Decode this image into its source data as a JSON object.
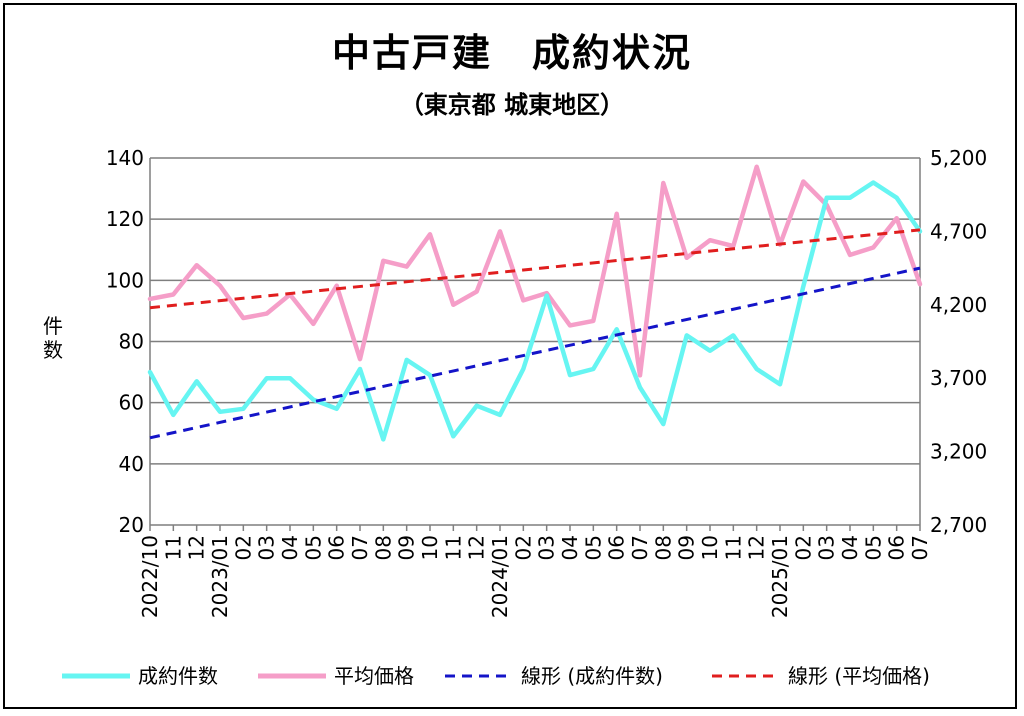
{
  "chart_data": {
    "type": "line",
    "title": "中古戸建　成約状況",
    "subtitle": "（東京都 城東地区）",
    "ylabel": "件数",
    "y_left": {
      "ylim": [
        20,
        140
      ],
      "ticks": [
        "140",
        "120",
        "100",
        "80",
        "60",
        "40",
        "20"
      ]
    },
    "y_right": {
      "ylim": [
        2700,
        5200
      ],
      "ticks": [
        "5,200",
        "4,700",
        "4,200",
        "3,700",
        "3,200",
        "2,700"
      ]
    },
    "grid": true,
    "legend_position": "bottom",
    "x_labels": [
      "2022/10",
      "11",
      "12",
      "2023/01",
      "02",
      "03",
      "04",
      "05",
      "06",
      "07",
      "08",
      "09",
      "10",
      "11",
      "12",
      "2024/01",
      "02",
      "03",
      "04",
      "05",
      "06",
      "07",
      "08",
      "09",
      "10",
      "11",
      "12",
      "2025/01",
      "02",
      "03",
      "04",
      "05",
      "06",
      "07"
    ],
    "series": [
      {
        "name": "成約件数",
        "axis": "left",
        "color": "#66f5f2",
        "style": "solid",
        "values": [
          70,
          56,
          67,
          57,
          58,
          68,
          68,
          61,
          58,
          71,
          48,
          74,
          69,
          49,
          59,
          56,
          71,
          95,
          69,
          71,
          84,
          65,
          53,
          82,
          77,
          82,
          71,
          66,
          98,
          127,
          127,
          132,
          127,
          116
        ]
      },
      {
        "name": "平均価格",
        "axis": "right",
        "color": "#f59ec8",
        "style": "solid",
        "values": [
          4240,
          4270,
          4470,
          4330,
          4110,
          4140,
          4270,
          4070,
          4330,
          3830,
          4500,
          4460,
          4680,
          4200,
          4290,
          4700,
          4230,
          4280,
          4060,
          4090,
          4820,
          3720,
          5030,
          4520,
          4640,
          4600,
          5140,
          4610,
          5040,
          4880,
          4540,
          4590,
          4790,
          4340
        ]
      },
      {
        "name": "線形 (成約件数)",
        "axis": "left",
        "color": "#1414c8",
        "style": "dashed",
        "values": [
          48.5,
          104.0
        ]
      },
      {
        "name": "線形 (平均価格)",
        "axis": "right",
        "color": "#e01e1e",
        "style": "dashed",
        "values": [
          4180,
          4710
        ]
      }
    ]
  }
}
